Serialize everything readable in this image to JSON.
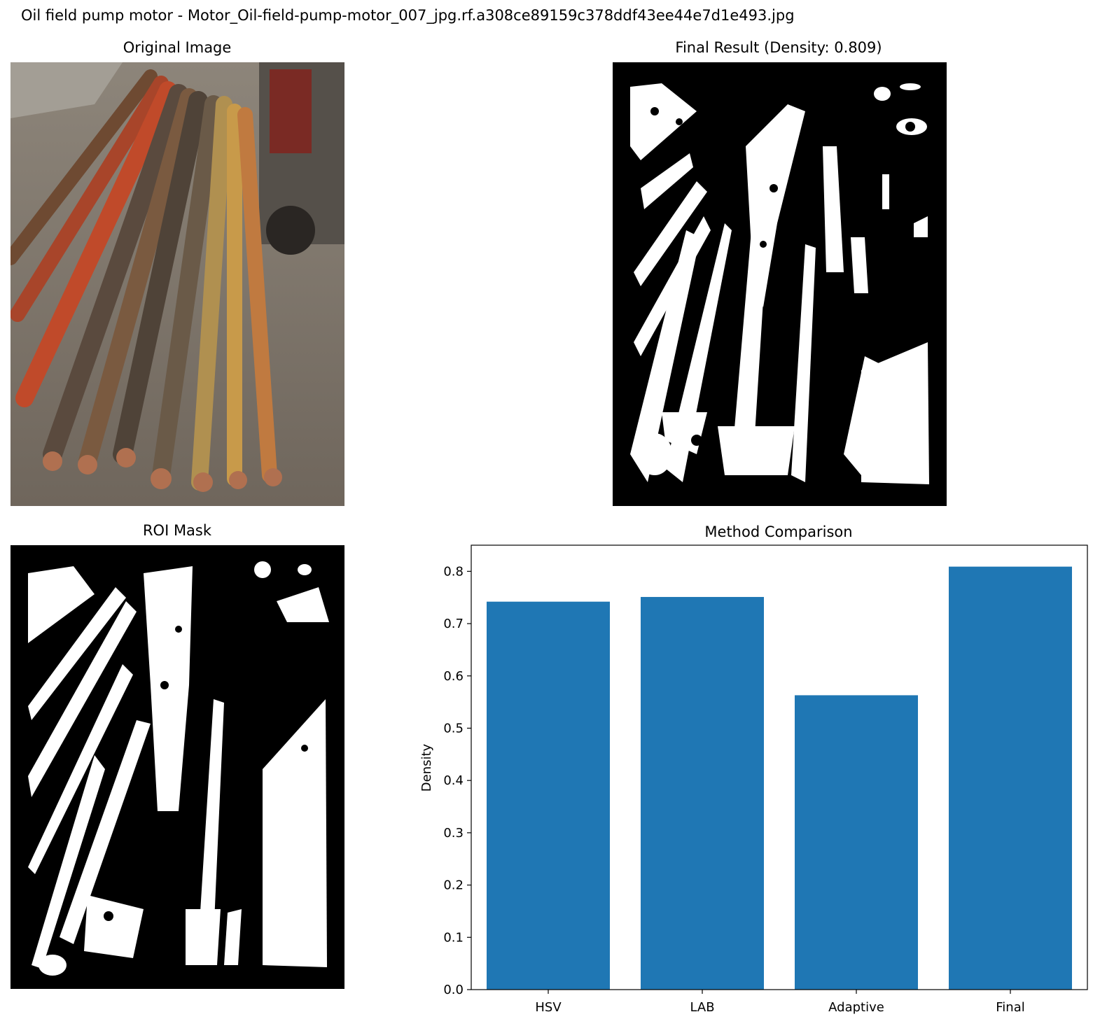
{
  "figure": {
    "suptitle": "Oil field pump motor - Motor_Oil-field-pump-motor_007_jpg.rf.a308ce89159c378ddf43ee44e7d1e493.jpg"
  },
  "panels": {
    "original": {
      "title": "Original Image"
    },
    "final": {
      "title": "Final Result (Density: 0.809)"
    },
    "roi": {
      "title": "ROI Mask"
    }
  },
  "colors": {
    "bar": "#1f77b4",
    "mask_bg": "#000000",
    "mask_fg": "#ffffff"
  },
  "chart_data": {
    "type": "bar",
    "title": "Method Comparison",
    "xlabel": "",
    "ylabel": "Density",
    "categories": [
      "HSV",
      "LAB",
      "Adaptive",
      "Final"
    ],
    "values": [
      0.742,
      0.751,
      0.563,
      0.809
    ],
    "ylim": [
      0,
      0.85
    ],
    "yticks": [
      "0.0",
      "0.1",
      "0.2",
      "0.3",
      "0.4",
      "0.5",
      "0.6",
      "0.7",
      "0.8"
    ],
    "grid": false,
    "legend": "none"
  }
}
